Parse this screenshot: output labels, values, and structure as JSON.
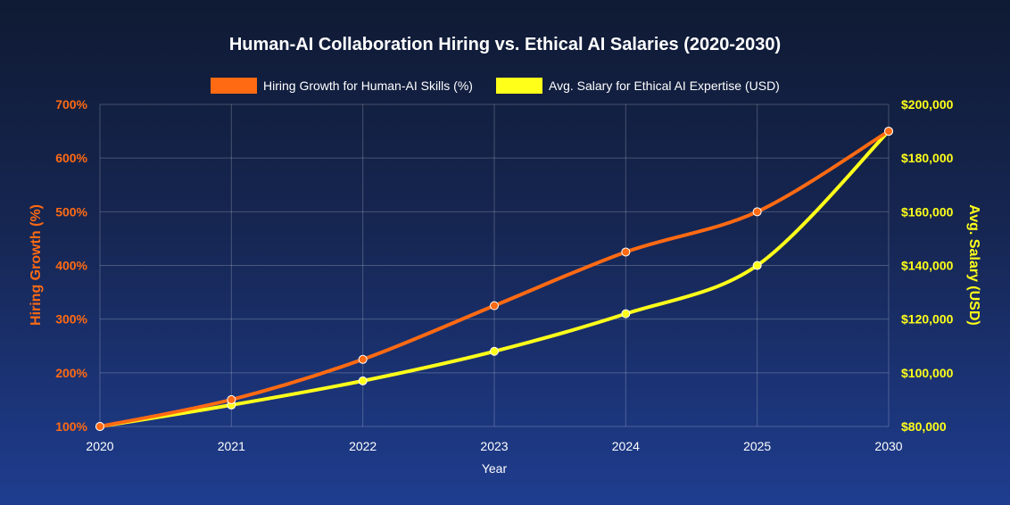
{
  "chart_data": {
    "type": "line",
    "title": "Human-AI Collaboration Hiring vs. Ethical AI Salaries (2020-2030)",
    "xlabel": "Year",
    "ylabel_left": "Hiring Growth (%)",
    "ylabel_right": "Avg. Salary (USD)",
    "categories": [
      "2020",
      "2021",
      "2022",
      "2023",
      "2024",
      "2025",
      "2030"
    ],
    "y_left": {
      "min": 100,
      "max": 700,
      "ticks": [
        100,
        200,
        300,
        400,
        500,
        600,
        700
      ],
      "tick_labels": [
        "100%",
        "200%",
        "300%",
        "400%",
        "500%",
        "600%",
        "700%"
      ]
    },
    "y_right": {
      "min": 80000,
      "max": 200000,
      "ticks": [
        80000,
        100000,
        120000,
        140000,
        160000,
        180000,
        200000
      ],
      "tick_labels": [
        "$80,000",
        "$100,000",
        "$120,000",
        "$140,000",
        "$160,000",
        "$180,000",
        "$200,000"
      ]
    },
    "series": [
      {
        "name": "Hiring Growth for Human-AI Skills (%)",
        "axis": "left",
        "color": "#ff6a13",
        "values": [
          100,
          150,
          225,
          325,
          425,
          500,
          650
        ]
      },
      {
        "name": "Avg. Salary for Ethical AI Expertise (USD)",
        "axis": "right",
        "color": "#ffff1a",
        "values": [
          80000,
          88000,
          97000,
          108000,
          122000,
          140000,
          190000
        ]
      }
    ],
    "colors": {
      "left_axis": "#ff6a13",
      "right_axis": "#ffff1a",
      "grid": "rgba(255,255,255,0.22)",
      "point_outline": "#ffffff"
    },
    "legend_position": "top"
  }
}
